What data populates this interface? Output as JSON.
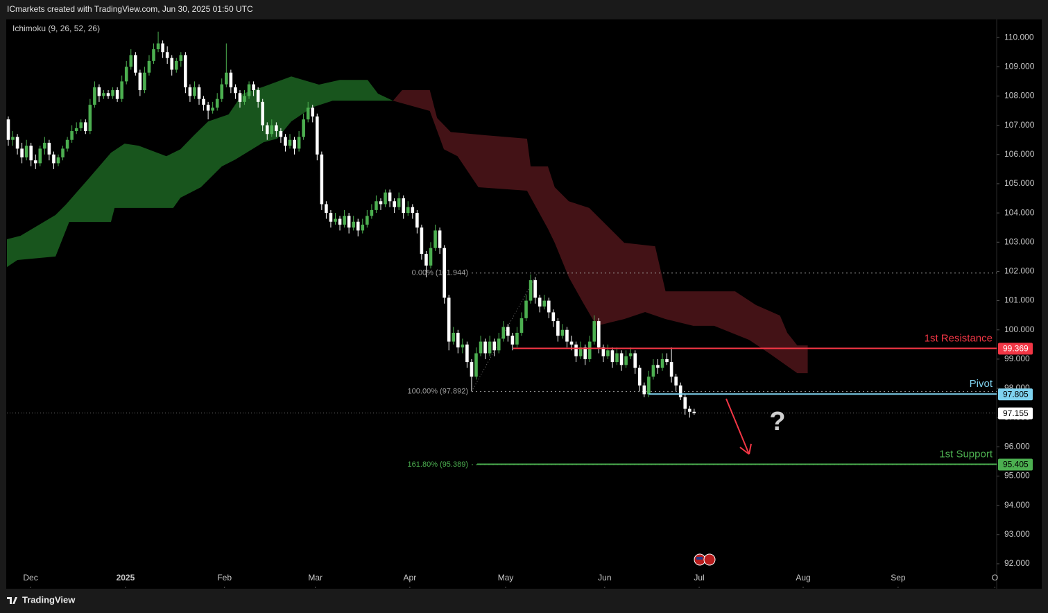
{
  "header": "ICmarkets created with TradingView.com, Jun 30, 2025 01:50 UTC",
  "footer": "TradingView",
  "chart_data": {
    "type": "candlestick",
    "indicator": "Ichimoku (9, 26, 52, 26)",
    "up_color": "#4caf50",
    "down_color": "#ffffff",
    "ylim": [
      91.17,
      110.62
    ],
    "yticks": [
      {
        "value": 110,
        "label": "110.000"
      },
      {
        "value": 109,
        "label": "109.000"
      },
      {
        "value": 108,
        "label": "108.000"
      },
      {
        "value": 107,
        "label": "107.000"
      },
      {
        "value": 106,
        "label": "106.000"
      },
      {
        "value": 105,
        "label": "105.000"
      },
      {
        "value": 104,
        "label": "104.000"
      },
      {
        "value": 103,
        "label": "103.000"
      },
      {
        "value": 102,
        "label": "102.000"
      },
      {
        "value": 101,
        "label": "101.000"
      },
      {
        "value": 100,
        "label": "100.000"
      },
      {
        "value": 99,
        "label": "99.000"
      },
      {
        "value": 98,
        "label": "98.000"
      },
      {
        "value": 97,
        "label": "97.000"
      },
      {
        "value": 96,
        "label": "96.000"
      },
      {
        "value": 95,
        "label": "95.000"
      },
      {
        "value": 94,
        "label": "94.000"
      },
      {
        "value": 93,
        "label": "93.000"
      },
      {
        "value": 92,
        "label": "92.000"
      }
    ],
    "xlim": [
      -0.3,
      217.6
    ],
    "xticks": [
      {
        "value": 4.9,
        "label": "Dec"
      },
      {
        "value": 25.8,
        "label": "2025"
      },
      {
        "value": 47.6,
        "label": "Feb"
      },
      {
        "value": 67.6,
        "label": "Mar"
      },
      {
        "value": 88.4,
        "label": "Apr"
      },
      {
        "value": 109.5,
        "label": "May"
      },
      {
        "value": 131.3,
        "label": "Jun"
      },
      {
        "value": 152.1,
        "label": "Jul"
      },
      {
        "value": 175,
        "label": "Aug"
      },
      {
        "value": 195.9,
        "label": "Sep"
      },
      {
        "value": 217.2,
        "label": "O"
      }
    ],
    "candles": [
      [
        107.2,
        107.3,
        106.3,
        106.5
      ],
      [
        106.5,
        106.8,
        106.3,
        106.6
      ],
      [
        106.6,
        106.7,
        106.0,
        106.2
      ],
      [
        106.2,
        106.4,
        105.7,
        105.9
      ],
      [
        105.9,
        106.5,
        105.8,
        106.3
      ],
      [
        106.3,
        106.4,
        105.6,
        105.8
      ],
      [
        105.8,
        106.0,
        105.5,
        105.7
      ],
      [
        105.7,
        106.3,
        105.6,
        106.2
      ],
      [
        106.2,
        106.6,
        106.0,
        106.4
      ],
      [
        106.4,
        106.5,
        105.8,
        106.0
      ],
      [
        106.0,
        106.1,
        105.5,
        105.7
      ],
      [
        105.7,
        106.0,
        105.6,
        105.9
      ],
      [
        105.9,
        106.3,
        105.8,
        106.2
      ],
      [
        106.2,
        106.6,
        106.1,
        106.5
      ],
      [
        106.5,
        107.0,
        106.4,
        106.8
      ],
      [
        106.8,
        107.1,
        106.7,
        106.9
      ],
      [
        106.9,
        107.2,
        106.8,
        107.1
      ],
      [
        107.1,
        107.2,
        106.7,
        106.8
      ],
      [
        106.8,
        107.9,
        106.7,
        107.7
      ],
      [
        107.7,
        108.5,
        107.6,
        108.3
      ],
      [
        108.3,
        108.4,
        107.8,
        108.0
      ],
      [
        108.0,
        108.2,
        107.9,
        108.1
      ],
      [
        108.1,
        108.2,
        107.9,
        108.0
      ],
      [
        108.0,
        108.3,
        107.9,
        108.2
      ],
      [
        108.2,
        108.3,
        107.8,
        107.9
      ],
      [
        107.9,
        108.7,
        107.8,
        108.5
      ],
      [
        108.5,
        109.2,
        108.4,
        109.0
      ],
      [
        109.0,
        109.6,
        108.9,
        109.4
      ],
      [
        109.4,
        109.5,
        108.7,
        108.8
      ],
      [
        108.8,
        108.9,
        108.0,
        108.2
      ],
      [
        108.2,
        109.0,
        108.1,
        108.8
      ],
      [
        108.8,
        109.4,
        108.7,
        109.2
      ],
      [
        109.2,
        109.8,
        109.1,
        109.6
      ],
      [
        109.6,
        110.2,
        109.5,
        109.8
      ],
      [
        109.8,
        109.9,
        109.3,
        109.5
      ],
      [
        109.5,
        109.7,
        109.1,
        109.3
      ],
      [
        109.3,
        109.4,
        108.7,
        108.9
      ],
      [
        108.9,
        109.3,
        108.8,
        109.2
      ],
      [
        109.2,
        109.5,
        109.0,
        109.4
      ],
      [
        109.4,
        109.5,
        108.1,
        108.3
      ],
      [
        108.3,
        108.4,
        107.8,
        108.0
      ],
      [
        108.0,
        108.5,
        107.9,
        108.3
      ],
      [
        108.3,
        108.4,
        107.7,
        107.9
      ],
      [
        107.9,
        108.0,
        107.5,
        107.7
      ],
      [
        107.7,
        107.8,
        107.2,
        107.5
      ],
      [
        107.5,
        107.8,
        107.4,
        107.6
      ],
      [
        107.6,
        108.1,
        107.5,
        107.9
      ],
      [
        107.9,
        108.6,
        107.8,
        108.4
      ],
      [
        108.4,
        109.8,
        108.3,
        108.8
      ],
      [
        108.8,
        108.9,
        108.1,
        108.3
      ],
      [
        108.3,
        108.4,
        107.9,
        108.1
      ],
      [
        108.1,
        108.2,
        107.6,
        107.8
      ],
      [
        107.8,
        108.2,
        107.7,
        108.0
      ],
      [
        108.0,
        108.5,
        107.9,
        108.4
      ],
      [
        108.4,
        108.5,
        108.0,
        108.2
      ],
      [
        108.2,
        108.3,
        107.6,
        107.8
      ],
      [
        107.8,
        107.9,
        106.8,
        107.0
      ],
      [
        107.0,
        107.1,
        106.5,
        106.7
      ],
      [
        106.7,
        107.2,
        106.6,
        107.0
      ],
      [
        107.0,
        107.1,
        106.6,
        106.8
      ],
      [
        106.8,
        106.9,
        106.4,
        106.6
      ],
      [
        106.6,
        106.7,
        106.1,
        106.3
      ],
      [
        106.3,
        106.7,
        106.2,
        106.5
      ],
      [
        106.5,
        106.6,
        106.0,
        106.2
      ],
      [
        106.2,
        106.8,
        106.1,
        106.6
      ],
      [
        106.6,
        107.4,
        106.5,
        107.2
      ],
      [
        107.2,
        107.8,
        107.1,
        107.6
      ],
      [
        107.6,
        107.7,
        107.1,
        107.3
      ],
      [
        107.3,
        107.4,
        105.8,
        106.0
      ],
      [
        106.0,
        106.1,
        104.1,
        104.3
      ],
      [
        104.3,
        104.4,
        103.8,
        104.0
      ],
      [
        104.0,
        104.1,
        103.5,
        103.7
      ],
      [
        103.7,
        104.0,
        103.6,
        103.8
      ],
      [
        103.8,
        103.9,
        103.4,
        103.6
      ],
      [
        103.6,
        104.1,
        103.5,
        103.9
      ],
      [
        103.9,
        104.0,
        103.3,
        103.5
      ],
      [
        103.5,
        103.9,
        103.4,
        103.7
      ],
      [
        103.7,
        103.8,
        103.2,
        103.4
      ],
      [
        103.4,
        103.8,
        103.3,
        103.6
      ],
      [
        103.6,
        104.1,
        103.5,
        103.9
      ],
      [
        103.9,
        104.3,
        103.8,
        104.1
      ],
      [
        104.1,
        104.6,
        104.0,
        104.4
      ],
      [
        104.4,
        104.5,
        104.1,
        104.3
      ],
      [
        104.3,
        104.8,
        104.2,
        104.7
      ],
      [
        104.7,
        104.8,
        104.2,
        104.4
      ],
      [
        104.4,
        104.5,
        104.0,
        104.2
      ],
      [
        104.2,
        104.7,
        104.1,
        104.5
      ],
      [
        104.5,
        104.6,
        103.8,
        104.0
      ],
      [
        104.0,
        104.4,
        103.9,
        104.2
      ],
      [
        104.2,
        104.3,
        103.8,
        104.0
      ],
      [
        104.0,
        104.1,
        103.3,
        103.5
      ],
      [
        103.5,
        103.6,
        102.4,
        102.6
      ],
      [
        102.6,
        102.7,
        101.8,
        102.2
      ],
      [
        102.2,
        103.0,
        102.1,
        102.8
      ],
      [
        102.8,
        103.6,
        102.7,
        103.4
      ],
      [
        103.4,
        103.5,
        102.6,
        102.8
      ],
      [
        102.8,
        102.9,
        100.9,
        101.1
      ],
      [
        101.1,
        101.2,
        99.3,
        99.6
      ],
      [
        99.6,
        100.1,
        99.5,
        99.9
      ],
      [
        99.9,
        100.0,
        99.2,
        99.4
      ],
      [
        99.4,
        99.7,
        99.2,
        99.5
      ],
      [
        99.5,
        99.6,
        98.7,
        98.9
      ],
      [
        98.9,
        99.0,
        97.9,
        98.4
      ],
      [
        98.4,
        99.4,
        98.3,
        99.2
      ],
      [
        99.2,
        99.8,
        99.1,
        99.6
      ],
      [
        99.6,
        99.7,
        99.0,
        99.2
      ],
      [
        99.2,
        99.8,
        99.1,
        99.6
      ],
      [
        99.6,
        99.7,
        99.1,
        99.3
      ],
      [
        99.3,
        99.9,
        99.2,
        99.7
      ],
      [
        99.7,
        100.3,
        99.6,
        100.1
      ],
      [
        100.1,
        100.2,
        99.6,
        99.8
      ],
      [
        99.8,
        99.9,
        99.3,
        99.5
      ],
      [
        99.5,
        100.1,
        99.4,
        99.9
      ],
      [
        99.9,
        100.6,
        99.8,
        100.4
      ],
      [
        100.4,
        101.2,
        100.3,
        101.0
      ],
      [
        101.0,
        101.9,
        100.9,
        101.7
      ],
      [
        101.7,
        101.8,
        100.9,
        101.1
      ],
      [
        101.1,
        101.2,
        100.6,
        100.8
      ],
      [
        100.8,
        101.2,
        100.7,
        101.0
      ],
      [
        101.0,
        101.1,
        100.4,
        100.6
      ],
      [
        100.6,
        100.7,
        100.1,
        100.3
      ],
      [
        100.3,
        100.4,
        99.6,
        99.8
      ],
      [
        99.8,
        100.2,
        99.7,
        100.0
      ],
      [
        100.0,
        100.1,
        99.4,
        99.6
      ],
      [
        99.6,
        99.8,
        99.3,
        99.5
      ],
      [
        99.5,
        99.6,
        98.9,
        99.1
      ],
      [
        99.1,
        99.6,
        99.0,
        99.4
      ],
      [
        99.4,
        99.5,
        98.8,
        99.0
      ],
      [
        99.0,
        99.8,
        98.9,
        99.6
      ],
      [
        99.6,
        100.5,
        99.5,
        100.3
      ],
      [
        100.3,
        100.4,
        99.2,
        99.4
      ],
      [
        99.4,
        99.5,
        98.9,
        99.1
      ],
      [
        99.1,
        99.5,
        99.0,
        99.3
      ],
      [
        99.3,
        99.4,
        98.7,
        98.9
      ],
      [
        98.9,
        99.4,
        98.8,
        99.2
      ],
      [
        99.2,
        99.3,
        98.6,
        98.8
      ],
      [
        98.8,
        99.3,
        98.7,
        99.1
      ],
      [
        99.1,
        99.4,
        99.0,
        99.2
      ],
      [
        99.2,
        99.3,
        98.5,
        98.7
      ],
      [
        98.7,
        98.8,
        97.9,
        98.1
      ],
      [
        98.1,
        98.2,
        97.7,
        97.8
      ],
      [
        97.8,
        98.6,
        97.7,
        98.4
      ],
      [
        98.4,
        99.0,
        98.3,
        98.8
      ],
      [
        98.8,
        99.0,
        98.5,
        98.7
      ],
      [
        98.7,
        99.2,
        98.6,
        99.0
      ],
      [
        99.0,
        99.2,
        98.8,
        98.9
      ],
      [
        98.9,
        99.4,
        98.2,
        98.4
      ],
      [
        98.4,
        98.5,
        97.9,
        98.1
      ],
      [
        98.1,
        98.2,
        97.6,
        97.7
      ],
      [
        97.7,
        97.8,
        97.1,
        97.3
      ],
      [
        97.3,
        97.4,
        97.0,
        97.2
      ],
      [
        97.2,
        97.3,
        97.1,
        97.155
      ]
    ],
    "cloud": [
      {
        "color": "#1b5e20",
        "top": {
          "x": [
            -0.3,
            2.7,
            10.4,
            12.7,
            18,
            22.6,
            25.6,
            28.7,
            34.8,
            37.9,
            40.9,
            44,
            48.5,
            51.6,
            56.2,
            62.3,
            68.4,
            73,
            79.1,
            81.4,
            84.7
          ],
          "y": [
            103.1,
            103.22,
            103.93,
            104.29,
            105.23,
            106.06,
            106.37,
            106.3,
            105.94,
            106.18,
            106.66,
            107.13,
            107.37,
            108.08,
            108.32,
            108.67,
            108.39,
            108.55,
            108.55,
            108.08,
            107.84
          ]
        },
        "bottom": {
          "x": [
            -0.3,
            2,
            10.4,
            11.9,
            13.4,
            22.6,
            23.4,
            36.3,
            37.9,
            42.4,
            47,
            50,
            56.2,
            59.2,
            62.3,
            66.9,
            71.4,
            84.7
          ],
          "y": [
            102.15,
            102.39,
            102.51,
            103.1,
            103.69,
            103.69,
            104.17,
            104.17,
            104.52,
            104.88,
            105.59,
            105.83,
            106.42,
            106.54,
            107.13,
            107.61,
            107.84,
            107.84
          ]
        }
      },
      {
        "color": "#4a1418",
        "top": {
          "x": [
            84.7,
            86.7,
            92.8,
            94.4,
            97.4,
            105,
            114.2,
            115,
            118.8,
            120.3,
            123.4,
            127.9,
            135.6,
            142.4,
            144.7,
            160,
            164.6,
            169.9,
            171.5,
            173.7,
            176
          ],
          "y": [
            107.84,
            108.2,
            108.2,
            107.25,
            106.77,
            106.66,
            106.54,
            105.59,
            105.59,
            104.88,
            104.4,
            104.17,
            102.98,
            102.86,
            101.32,
            101.32,
            100.85,
            100.49,
            99.9,
            99.47,
            99.47
          ]
        },
        "bottom": {
          "x": [
            84.7,
            92.8,
            95.9,
            98.9,
            103.5,
            114.2,
            118.8,
            120.3,
            123.4,
            126.4,
            129.5,
            135.6,
            140.2,
            144.7,
            150.8,
            155.4,
            163.1,
            167.6,
            173.7,
            176
          ],
          "y": [
            107.84,
            107.49,
            106.18,
            105.94,
            104.88,
            104.76,
            103.46,
            102.98,
            101.8,
            100.97,
            100.14,
            100.37,
            100.61,
            100.37,
            100.14,
            100.14,
            99.66,
            99.19,
            98.52,
            98.52
          ]
        }
      }
    ],
    "fib": [
      {
        "label": "0.00% (101.944)",
        "value": 101.944,
        "color": "#9e9e9e"
      },
      {
        "label": "100.00% (97.892)",
        "value": 97.892,
        "color": "#9e9e9e"
      },
      {
        "label": "161.80% (95.389)",
        "value": 95.389,
        "color": "#4caf50"
      }
    ],
    "levels": [
      {
        "label": "1st Resistance",
        "value": 99.369,
        "color": "#f23645",
        "text_color": "#ffffff"
      },
      {
        "label": "Pivot",
        "value": 97.805,
        "color": "#7fd3f0",
        "text_color": "#000000"
      },
      {
        "label": "1st Support",
        "value": 95.405,
        "color": "#4caf50",
        "text_color": "#000000"
      }
    ],
    "last_price": 97.155,
    "annotation": "?"
  }
}
